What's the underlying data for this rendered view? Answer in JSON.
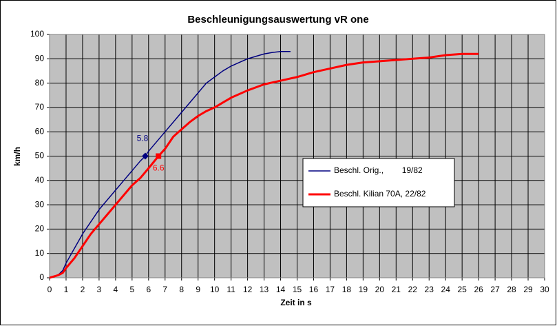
{
  "chart_data": {
    "type": "line",
    "title": "Beschleunigungsauswertung vR one",
    "xlabel": "Zeit in s",
    "ylabel": "km/h",
    "xlim": [
      0,
      30
    ],
    "xticks": [
      0,
      1,
      2,
      3,
      4,
      5,
      6,
      7,
      8,
      9,
      10,
      11,
      12,
      13,
      14,
      15,
      16,
      17,
      18,
      19,
      20,
      21,
      22,
      23,
      24,
      25,
      26,
      27,
      28,
      29,
      30
    ],
    "ylim": [
      0,
      100
    ],
    "yticks": [
      0,
      10,
      20,
      30,
      40,
      50,
      60,
      70,
      80,
      90,
      100
    ],
    "grid": true,
    "legend": "center-right",
    "series": [
      {
        "name": "Beschl. Orig.,        19/82",
        "color": "#000080",
        "width": 1.5,
        "x": [
          0,
          0.5,
          0.8,
          1,
          1.5,
          2,
          2.5,
          3,
          3.5,
          4,
          4.5,
          5,
          5.5,
          5.8,
          6,
          6.5,
          7,
          7.5,
          8,
          8.5,
          9,
          9.5,
          10,
          10.5,
          11,
          11.5,
          12,
          12.5,
          13,
          13.5,
          14,
          14.6
        ],
        "values": [
          0,
          1,
          3,
          6,
          12,
          18,
          23,
          28,
          32,
          36,
          40,
          44,
          48,
          50,
          52,
          56,
          60,
          64,
          68,
          72,
          76,
          80,
          82.5,
          85,
          87,
          88.5,
          90,
          91,
          92,
          92.6,
          93,
          93
        ]
      },
      {
        "name": "Beschl. Kilian 70A, 22/82",
        "color": "#ff0000",
        "width": 3,
        "x": [
          0,
          0.5,
          0.8,
          1,
          1.5,
          2,
          2.5,
          3,
          3.5,
          4,
          4.5,
          5,
          5.5,
          6,
          6.6,
          7,
          7.5,
          8,
          8.5,
          9,
          9.5,
          10,
          10.5,
          11,
          12,
          13,
          14,
          15,
          16,
          17,
          18,
          19,
          20,
          21,
          22,
          23,
          24,
          25,
          26
        ],
        "values": [
          0,
          1,
          2,
          4,
          8,
          13,
          18,
          22,
          26,
          30,
          34,
          38,
          41,
          45,
          50,
          53,
          58,
          61,
          64,
          66.5,
          68.5,
          70,
          72,
          74,
          77,
          79.5,
          81,
          82.5,
          84.5,
          86,
          87.5,
          88.5,
          89,
          89.5,
          90,
          90.5,
          91.5,
          92,
          92
        ]
      }
    ],
    "markers": [
      {
        "x": 5.8,
        "y": 50,
        "label": "5.8",
        "color": "#000080",
        "shape": "diamond"
      },
      {
        "x": 6.6,
        "y": 50,
        "label": "6.6",
        "color": "#ff0000",
        "shape": "square"
      }
    ]
  }
}
